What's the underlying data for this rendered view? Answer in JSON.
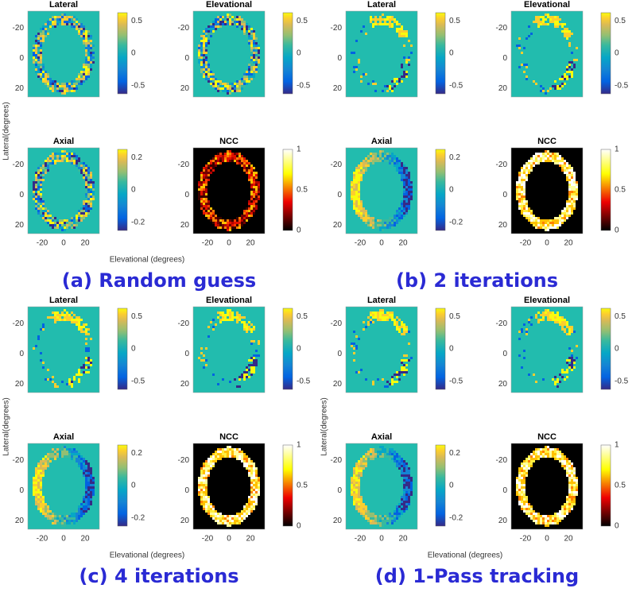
{
  "panels": [
    {
      "caption": "(a) Random guess",
      "xlabel": "Elevational (degrees)",
      "ylabel": "Lateral(degrees)",
      "xticks": [
        -20,
        0,
        20
      ],
      "yticks": [
        -20,
        0,
        20
      ],
      "plots": [
        {
          "title": "Lateral",
          "colorbar_ticks": [
            0.5,
            0,
            -0.5
          ]
        },
        {
          "title": "Elevational",
          "colorbar_ticks": [
            0.5,
            0,
            -0.5
          ]
        },
        {
          "title": "Axial",
          "colorbar_ticks": [
            0.2,
            0,
            -0.2
          ]
        },
        {
          "title": "NCC",
          "colorbar_ticks": [
            1,
            0.5,
            0
          ]
        }
      ]
    },
    {
      "caption": "(b) 2 iterations",
      "xticks": [
        -20,
        0,
        20
      ],
      "yticks": [
        -20,
        0,
        20
      ],
      "plots": [
        {
          "title": "Lateral",
          "colorbar_ticks": [
            0.5,
            0,
            -0.5
          ]
        },
        {
          "title": "Elevational",
          "colorbar_ticks": [
            0.5,
            0,
            -0.5
          ]
        },
        {
          "title": "Axial",
          "colorbar_ticks": [
            0.2,
            0,
            -0.2
          ]
        },
        {
          "title": "NCC",
          "colorbar_ticks": [
            1,
            0.5,
            0
          ]
        }
      ]
    },
    {
      "caption": "(c) 4 iterations",
      "xlabel": "Elevational (degrees)",
      "ylabel": "Lateral(degrees)",
      "xticks": [
        -20,
        0,
        20
      ],
      "yticks": [
        -20,
        0,
        20
      ],
      "plots": [
        {
          "title": "Lateral",
          "colorbar_ticks": [
            0.5,
            0,
            -0.5
          ]
        },
        {
          "title": "Elevational",
          "colorbar_ticks": [
            0.5,
            0,
            -0.5
          ]
        },
        {
          "title": "Axial",
          "colorbar_ticks": [
            0.2,
            0,
            -0.2
          ]
        },
        {
          "title": "NCC",
          "colorbar_ticks": [
            1,
            0.5,
            0
          ]
        }
      ]
    },
    {
      "caption": "(d) 1-Pass tracking",
      "xlabel": "Elevational (degrees)",
      "ylabel": "Lateral(degrees)",
      "xticks": [
        -20,
        0,
        20
      ],
      "yticks": [
        -20,
        0,
        20
      ],
      "plots": [
        {
          "title": "Lateral",
          "colorbar_ticks": [
            0.5,
            0,
            -0.5
          ]
        },
        {
          "title": "Elevational",
          "colorbar_ticks": [
            0.5,
            0,
            -0.5
          ]
        },
        {
          "title": "Axial",
          "colorbar_ticks": [
            0.2,
            0,
            -0.2
          ]
        },
        {
          "title": "NCC",
          "colorbar_ticks": [
            1,
            0.5,
            0
          ]
        }
      ]
    }
  ]
}
